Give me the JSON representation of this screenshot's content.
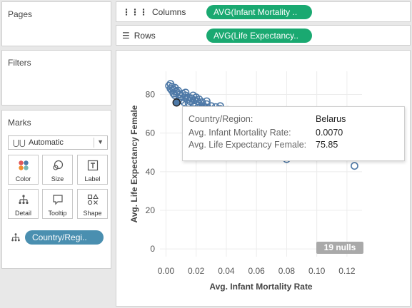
{
  "sidebar": {
    "pages_title": "Pages",
    "filters_title": "Filters",
    "marks_title": "Marks",
    "mark_type": "Automatic",
    "mark_buttons": [
      {
        "label": "Color",
        "icon": "color-icon"
      },
      {
        "label": "Size",
        "icon": "size-icon"
      },
      {
        "label": "Label",
        "icon": "label-icon"
      },
      {
        "label": "Detail",
        "icon": "detail-icon"
      },
      {
        "label": "Tooltip",
        "icon": "tooltip-icon"
      },
      {
        "label": "Shape",
        "icon": "shape-icon"
      }
    ],
    "detail_pill": "Country/Regi.."
  },
  "shelves": {
    "columns_label": "Columns",
    "columns_pill": "AVG(Infant Mortality ..",
    "rows_label": "Rows",
    "rows_pill": "AVG(Life Expectancy.."
  },
  "tooltip": {
    "rows": [
      {
        "key": "Country/Region:",
        "value": "Belarus"
      },
      {
        "key": "Avg. Infant Mortality Rate:",
        "value": "0.0070"
      },
      {
        "key": "Avg. Life Expectancy Female:",
        "value": "75.85"
      }
    ]
  },
  "nulls_badge": "19 nulls",
  "colors": {
    "mark_stroke": "#4e79a7",
    "pill_green": "#1aa971",
    "pill_blue": "#4a8fb0"
  },
  "chart_data": {
    "type": "scatter",
    "xlabel": "Avg. Infant Mortality Rate",
    "ylabel": "Avg. Life Expectancy Female",
    "x_ticks": [
      "0.00",
      "0.02",
      "0.04",
      "0.06",
      "0.08",
      "0.10",
      "0.12"
    ],
    "y_ticks": [
      "0",
      "20",
      "40",
      "60",
      "80"
    ],
    "xlim": [
      -0.004,
      0.13
    ],
    "ylim": [
      -4,
      92
    ],
    "grid": true,
    "highlighted": {
      "x": 0.007,
      "y": 75.85
    },
    "points": [
      [
        0.002,
        84.5
      ],
      [
        0.003,
        85.5
      ],
      [
        0.004,
        84.0
      ],
      [
        0.003,
        83.0
      ],
      [
        0.005,
        82.5
      ],
      [
        0.006,
        83.5
      ],
      [
        0.004,
        82.0
      ],
      [
        0.007,
        81.5
      ],
      [
        0.005,
        80.5
      ],
      [
        0.008,
        82.0
      ],
      [
        0.009,
        80.0
      ],
      [
        0.006,
        79.5
      ],
      [
        0.01,
        79.0
      ],
      [
        0.011,
        80.5
      ],
      [
        0.012,
        78.5
      ],
      [
        0.01,
        77.0
      ],
      [
        0.013,
        79.5
      ],
      [
        0.014,
        77.5
      ],
      [
        0.015,
        78.5
      ],
      [
        0.012,
        76.0
      ],
      [
        0.016,
        76.5
      ],
      [
        0.017,
        78.0
      ],
      [
        0.018,
        75.5
      ],
      [
        0.019,
        77.0
      ],
      [
        0.02,
        74.5
      ],
      [
        0.021,
        76.5
      ],
      [
        0.022,
        75.0
      ],
      [
        0.023,
        73.5
      ],
      [
        0.024,
        76.0
      ],
      [
        0.025,
        74.0
      ],
      [
        0.026,
        72.5
      ],
      [
        0.027,
        75.0
      ],
      [
        0.028,
        73.0
      ],
      [
        0.029,
        71.5
      ],
      [
        0.03,
        74.0
      ],
      [
        0.031,
        72.0
      ],
      [
        0.033,
        73.5
      ],
      [
        0.034,
        70.5
      ],
      [
        0.036,
        72.5
      ],
      [
        0.038,
        70.0
      ],
      [
        0.041,
        72.0
      ],
      [
        0.043,
        69.5
      ],
      [
        0.046,
        71.5
      ],
      [
        0.049,
        69.0
      ],
      [
        0.052,
        70.5
      ],
      [
        0.055,
        68.5
      ],
      [
        0.058,
        69.0
      ],
      [
        0.062,
        66.0
      ],
      [
        0.066,
        64.5
      ],
      [
        0.07,
        62.0
      ],
      [
        0.075,
        63.0
      ],
      [
        0.081,
        60.5
      ],
      [
        0.088,
        58.5
      ],
      [
        0.095,
        57.0
      ],
      [
        0.102,
        61.0
      ],
      [
        0.11,
        59.0
      ],
      [
        0.047,
        47.5
      ],
      [
        0.052,
        54.0
      ],
      [
        0.058,
        48.0
      ],
      [
        0.066,
        52.0
      ],
      [
        0.073,
        48.0
      ],
      [
        0.08,
        46.5
      ],
      [
        0.09,
        52.5
      ],
      [
        0.107,
        48.0
      ],
      [
        0.125,
        43.0
      ],
      [
        0.035,
        62.0
      ],
      [
        0.04,
        64.5
      ],
      [
        0.031,
        66.5
      ],
      [
        0.037,
        60.0
      ],
      [
        0.044,
        58.0
      ],
      [
        0.061,
        56.5
      ],
      [
        0.072,
        55.0
      ],
      [
        0.085,
        53.0
      ],
      [
        0.1,
        50.5
      ],
      [
        0.007,
        80.5
      ],
      [
        0.009,
        78.0
      ],
      [
        0.013,
        81.0
      ],
      [
        0.015,
        75.5
      ],
      [
        0.018,
        79.5
      ],
      [
        0.02,
        78.5
      ],
      [
        0.022,
        77.5
      ],
      [
        0.024,
        73.0
      ],
      [
        0.027,
        76.5
      ],
      [
        0.03,
        70.5
      ],
      [
        0.033,
        71.0
      ],
      [
        0.036,
        74.0
      ],
      [
        0.039,
        67.5
      ],
      [
        0.042,
        68.5
      ]
    ]
  }
}
